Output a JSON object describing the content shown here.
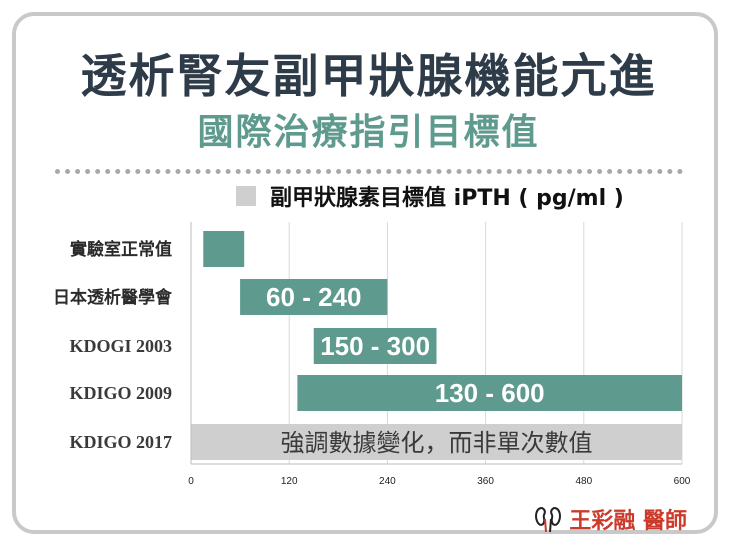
{
  "header": {
    "title": "透析腎友副甲狀腺機能亢進",
    "subtitle": "國際治療指引目標值"
  },
  "legend": {
    "label": "副甲狀腺素目標值 iPTH ( pg/ml )",
    "swatch_color": "#cfcfcf"
  },
  "signature": {
    "text": "王彩融 醫師",
    "icon": "kidney-icon"
  },
  "colors": {
    "bar": "#5e9a8d",
    "note_bar": "#cfcfcf",
    "title": "#2e3b48",
    "subtitle": "#5e9a8d",
    "signature": "#cc3a2b"
  },
  "chart_data": {
    "type": "bar",
    "orientation": "horizontal",
    "unit": "pg/ml",
    "xlim": [
      0,
      600
    ],
    "ticks": [
      0,
      120,
      240,
      360,
      480,
      600
    ],
    "grid": true,
    "categories": [
      "實驗室正常值",
      "日本透析醫學會",
      "KDOGI 2003",
      "KDIGO 2009",
      "KDIGO 2017"
    ],
    "ranges": [
      {
        "category": "實驗室正常值",
        "start": 15,
        "end": 65,
        "label": ""
      },
      {
        "category": "日本透析醫學會",
        "start": 60,
        "end": 240,
        "label": "60 - 240"
      },
      {
        "category": "KDOGI 2003",
        "start": 150,
        "end": 300,
        "label": "150 - 300"
      },
      {
        "category": "KDIGO 2009",
        "start": 130,
        "end": 600,
        "label": "130 - 600"
      },
      {
        "category": "KDIGO 2017",
        "start": 0,
        "end": 600,
        "label": "強調數據變化，而非單次數值",
        "style": "note"
      }
    ]
  }
}
